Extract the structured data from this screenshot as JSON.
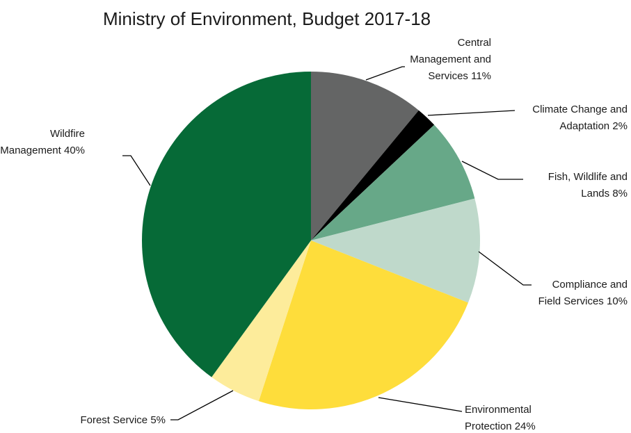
{
  "chart_data": {
    "type": "pie",
    "title": "Ministry of Environment, Budget 2017-18",
    "start_angle": "12 o'clock",
    "direction": "clockwise",
    "slices": [
      {
        "label_lines": [
          "Central",
          "Management and",
          "Services 11%"
        ],
        "value": 11,
        "color": "#646565"
      },
      {
        "label_lines": [
          "Climate Change and",
          "Adaptation 2%"
        ],
        "value": 2,
        "color": "#000000"
      },
      {
        "label_lines": [
          "Fish, Wildlife and",
          "Lands 8%"
        ],
        "value": 8,
        "color": "#67a888"
      },
      {
        "label_lines": [
          "Compliance and",
          "Field Services 10%"
        ],
        "value": 10,
        "color": "#bfd9cb"
      },
      {
        "label_lines": [
          "Environmental",
          "Protection 24%"
        ],
        "value": 24,
        "color": "#fedd3b"
      },
      {
        "label_lines": [
          "Forest Service 5%"
        ],
        "value": 5,
        "color": "#fdec9b"
      },
      {
        "label_lines": [
          "Wildfire",
          "Management 40%"
        ],
        "value": 40,
        "color": "#066a37"
      }
    ]
  }
}
